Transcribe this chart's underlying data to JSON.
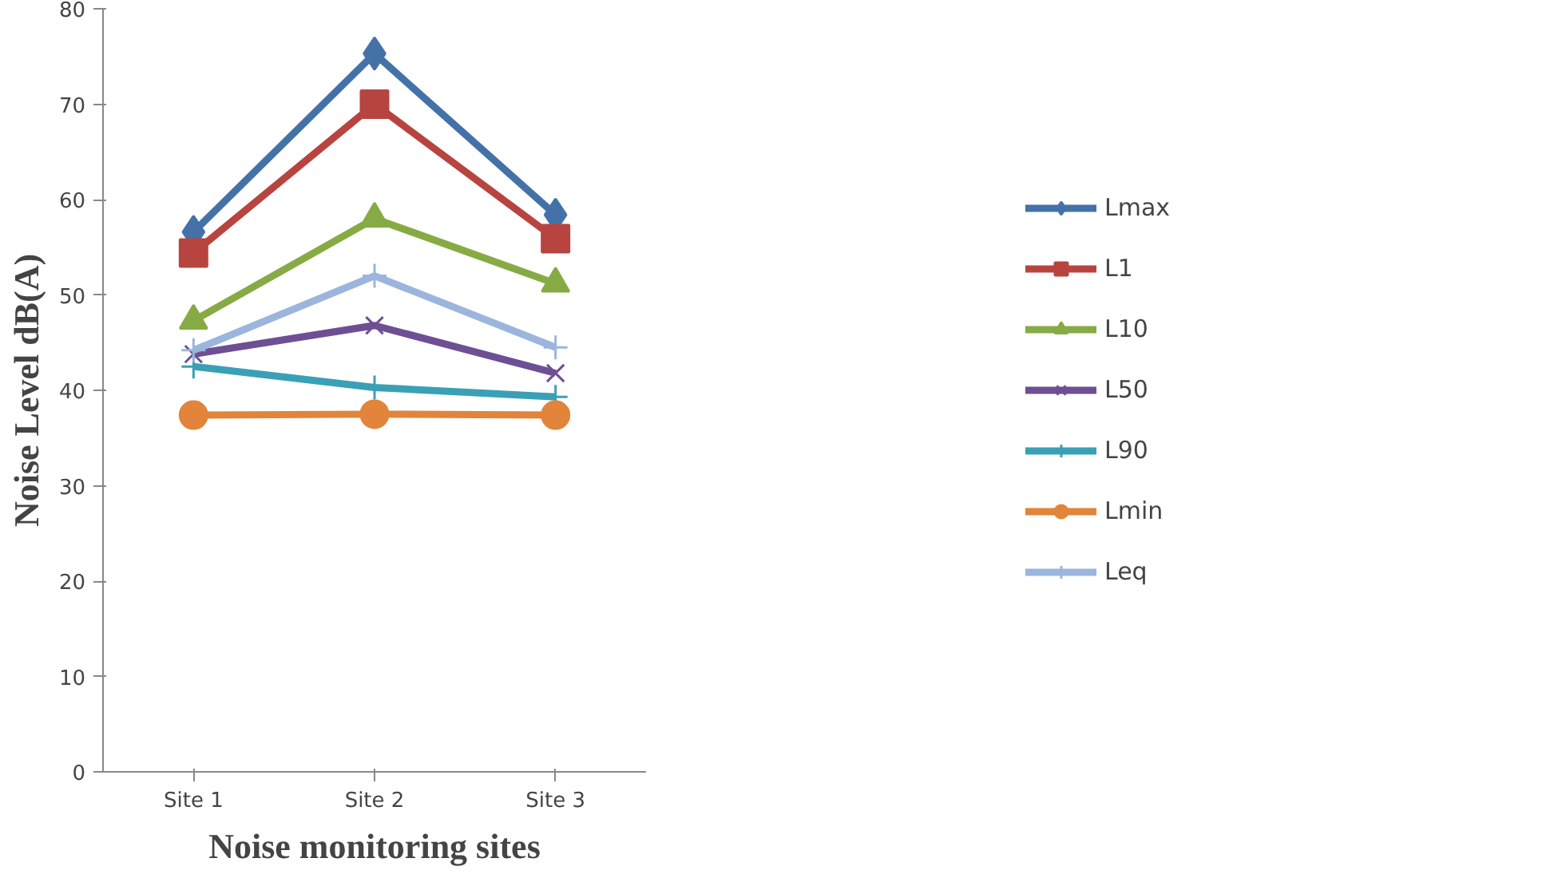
{
  "chart_data": {
    "type": "line",
    "xlabel": "Noise monitoring sites",
    "ylabel": "Noise Level dB(A)",
    "categories": [
      "Site 1",
      "Site 2",
      "Site 3"
    ],
    "ylim": [
      0,
      80
    ],
    "yticks": [
      0,
      10,
      20,
      30,
      40,
      50,
      60,
      70,
      80
    ],
    "grid": false,
    "legend": "right",
    "line_style": "solid",
    "series": [
      {
        "name": "Lmax",
        "color": "#4472a8",
        "marker": "diamond",
        "values": [
          56.6,
          75.3,
          58.4
        ]
      },
      {
        "name": "L1",
        "color": "#b84440",
        "marker": "square",
        "values": [
          54.4,
          70.0,
          55.9
        ]
      },
      {
        "name": "L10",
        "color": "#86ab44",
        "marker": "triangle",
        "values": [
          47.3,
          58.0,
          51.2
        ]
      },
      {
        "name": "L50",
        "color": "#6e4f93",
        "marker": "x",
        "values": [
          43.8,
          46.8,
          41.8
        ]
      },
      {
        "name": "L90",
        "color": "#3aa0b6",
        "marker": "cross",
        "values": [
          42.5,
          40.3,
          39.3
        ]
      },
      {
        "name": "Lmin",
        "color": "#e2843a",
        "marker": "circle",
        "values": [
          37.4,
          37.5,
          37.4
        ]
      },
      {
        "name": "Leq",
        "color": "#9bb5dd",
        "marker": "cross",
        "values": [
          44.2,
          52.0,
          44.5
        ]
      }
    ]
  }
}
